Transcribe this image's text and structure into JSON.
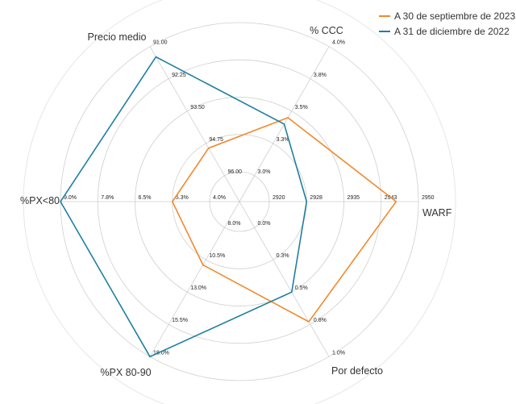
{
  "chart_data": {
    "type": "radar",
    "axes": [
      "WARF",
      "% CCC",
      "Precio medio",
      "%PX<80",
      "%PX 80-90",
      "Por defecto"
    ],
    "axis_ticks": [
      [
        "2920",
        "2928",
        "2935",
        "2943",
        "2950"
      ],
      [
        "3.0%",
        "3.3%",
        "3.5%",
        "3.8%",
        "4.0%"
      ],
      [
        "96.00",
        "94.75",
        "93.50",
        "92.25",
        "91.00"
      ],
      [
        "4.0%",
        "5.3%",
        "6.5%",
        "7.8%",
        "9.0%"
      ],
      [
        "8.0%",
        "10.5%",
        "13.0%",
        "15.5%",
        "18.0%"
      ],
      [
        "0.0%",
        "0.3%",
        "0.5%",
        "0.8%",
        "1.0%"
      ]
    ],
    "axis_ranges": [
      [
        2920,
        2950
      ],
      [
        3.0,
        4.0
      ],
      [
        96.0,
        91.0
      ],
      [
        4.0,
        9.0
      ],
      [
        8.0,
        18.0
      ],
      [
        0.0,
        1.0
      ]
    ],
    "series": [
      {
        "name": "A 30 de septiembre de 2023",
        "color": "#f08a2e",
        "values": [
          2945.5,
          3.45,
          94.93,
          5.25,
          10.9,
          0.73
        ]
      },
      {
        "name": "A 31 de diciembre de 2022",
        "color": "#1f7fa0",
        "values": [
          2927.5,
          3.4,
          91.4,
          9.0,
          18.0,
          0.5
        ]
      }
    ],
    "grid": true,
    "legend_position": "top-right"
  }
}
